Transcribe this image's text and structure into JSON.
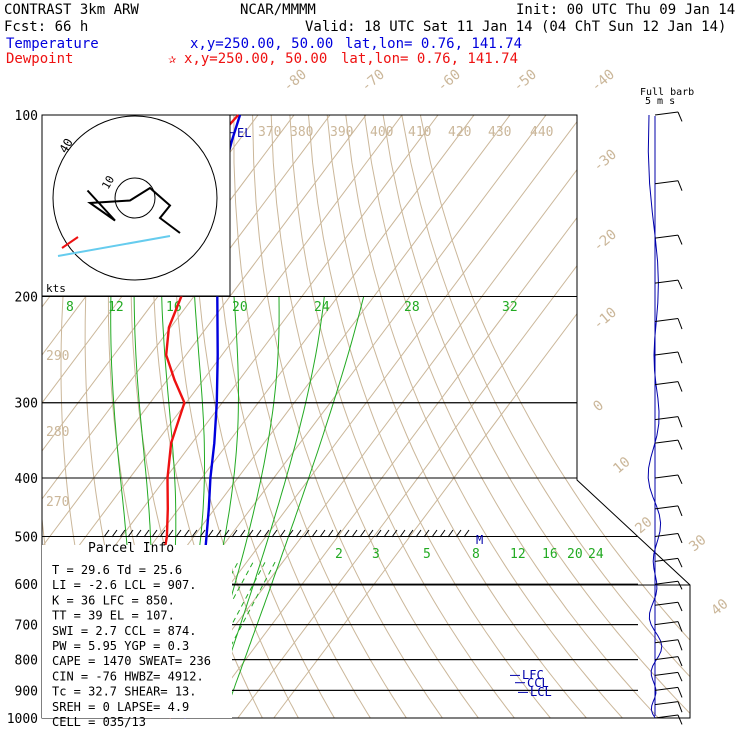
{
  "header": {
    "model": "CONTRAST  3km ARW",
    "center": "NCAR/MMMM",
    "init": "Init: 00 UTC Thu 09 Jan 14",
    "fcst": "Fcst:    66 h",
    "valid": "Valid: 18 UTC Sat 11 Jan 14 (04 ChT Sun 12 Jan 14)",
    "temp_label": "Temperature",
    "temp_xy": "x,y=250.00, 50.00",
    "temp_latlon": "lat,lon=  0.76, 141.74",
    "dew_label": "Dewpoint",
    "dew_xy": "x,y=250.00, 50.00",
    "dew_latlon": "lat,lon=  0.76, 141.74",
    "barb_key_1": "Full barb",
    "barb_key_2": "5 m s"
  },
  "colors": {
    "temperature": "#0000dd",
    "dewpoint": "#ee1111",
    "isotherm": "#cbb79a",
    "mixing_ratio": "#22aa22",
    "hodograph_trace": "#66ccee",
    "wind_profile": "#0000aa"
  },
  "chart_data": [
    {
      "type": "line",
      "title": "",
      "y_axis": "pressure (hPa), log scale",
      "ylim": [
        100,
        1000
      ],
      "pressure_ticks": [
        "100",
        "200",
        "300",
        "400",
        "500",
        "600",
        "700",
        "800",
        "900",
        "1000"
      ],
      "isotherm_labels": [
        "-80",
        "-70",
        "-60",
        "-50",
        "-40",
        "-30",
        "-20",
        "-10",
        "0",
        "10",
        "20",
        "30",
        "40"
      ],
      "dry_adiabat_labels": [
        "370",
        "380",
        "390",
        "400",
        "410",
        "420",
        "430",
        "440",
        "290",
        "280",
        "270"
      ],
      "moist_adiabat_labels": [
        "8",
        "12",
        "16",
        "20",
        "24",
        "28",
        "32"
      ],
      "mixing_ratio_labels": [
        "2",
        "3",
        "5",
        "8",
        "12",
        "16",
        "20",
        "24"
      ],
      "series": [
        {
          "name": "Temperature",
          "points": [
            [
              1000,
              25.6
            ],
            [
              975,
              23.5
            ],
            [
              950,
              21.7
            ],
            [
              925,
              20.6
            ],
            [
              900,
              19.2
            ],
            [
              875,
              17.8
            ],
            [
              850,
              16.2
            ],
            [
              800,
              12.8
            ],
            [
              750,
              9.4
            ],
            [
              700,
              6.6
            ],
            [
              650,
              4.4
            ],
            [
              600,
              1.5
            ],
            [
              550,
              -1.9
            ],
            [
              500,
              -6.5
            ],
            [
              450,
              -11.6
            ],
            [
              400,
              -17.6
            ],
            [
              350,
              -23.8
            ],
            [
              300,
              -31.5
            ],
            [
              250,
              -41.2
            ],
            [
              200,
              -53.5
            ],
            [
              175,
              -61.0
            ],
            [
              150,
              -69.5
            ],
            [
              125,
              -77.5
            ],
            [
              110,
              -82.0
            ],
            [
              100,
              -85.0
            ]
          ]
        },
        {
          "name": "Dewpoint",
          "points": [
            [
              1000,
              21.0
            ],
            [
              975,
              20.5
            ],
            [
              950,
              19.2
            ],
            [
              925,
              14.5
            ],
            [
              900,
              11.2
            ],
            [
              875,
              9.5
            ],
            [
              850,
              9.9
            ],
            [
              800,
              7.8
            ],
            [
              750,
              4.8
            ],
            [
              700,
              2.2
            ],
            [
              650,
              -2.5
            ],
            [
              600,
              -8.0
            ],
            [
              550,
              -13.5
            ],
            [
              500,
              -17.5
            ],
            [
              450,
              -23.0
            ],
            [
              400,
              -29.5
            ],
            [
              350,
              -35.8
            ],
            [
              300,
              -40.5
            ],
            [
              275,
              -48.0
            ],
            [
              250,
              -55.5
            ],
            [
              225,
              -60.5
            ],
            [
              200,
              -63.5
            ],
            [
              175,
              -69.0
            ],
            [
              150,
              -78.0
            ],
            [
              125,
              -85.0
            ],
            [
              110,
              -86.5
            ],
            [
              100,
              -85.5
            ]
          ]
        }
      ],
      "parcel_levels": [
        "LFC",
        "CCL",
        "LCL",
        "EL",
        "M"
      ],
      "parcel_info": {
        "title": "Parcel Info",
        "rows": [
          "T   =    29.6  Td =  25.6",
          "LI  =    -2.6  LCL =  907.",
          "K   =      36  LFC =  850.",
          "TT  =      39  EL  =  107.",
          "SWI =     2.7  CCL =  874.",
          "PW  =    5.95  YGP =   0.3",
          "CAPE =   1470  SWEAT=   236",
          "CIN  =    -76  HWBZ= 4912.",
          "Tc   =   32.7  SHEAR=   13.",
          "SREH =      0  LAPSE=   4.9",
          "CELL = 035/13"
        ]
      }
    },
    {
      "type": "line",
      "title": "",
      "xlabel": "kts",
      "ring_labels": [
        "40",
        "10"
      ],
      "series": [
        {
          "name": "",
          "points": [
            [
              18,
              -14
            ],
            [
              10,
              -8
            ],
            [
              14,
              -3
            ],
            [
              6,
              4
            ],
            [
              -2,
              -1
            ],
            [
              -18,
              -2
            ],
            [
              -8,
              -9
            ],
            [
              -19,
              3
            ]
          ]
        }
      ]
    }
  ]
}
